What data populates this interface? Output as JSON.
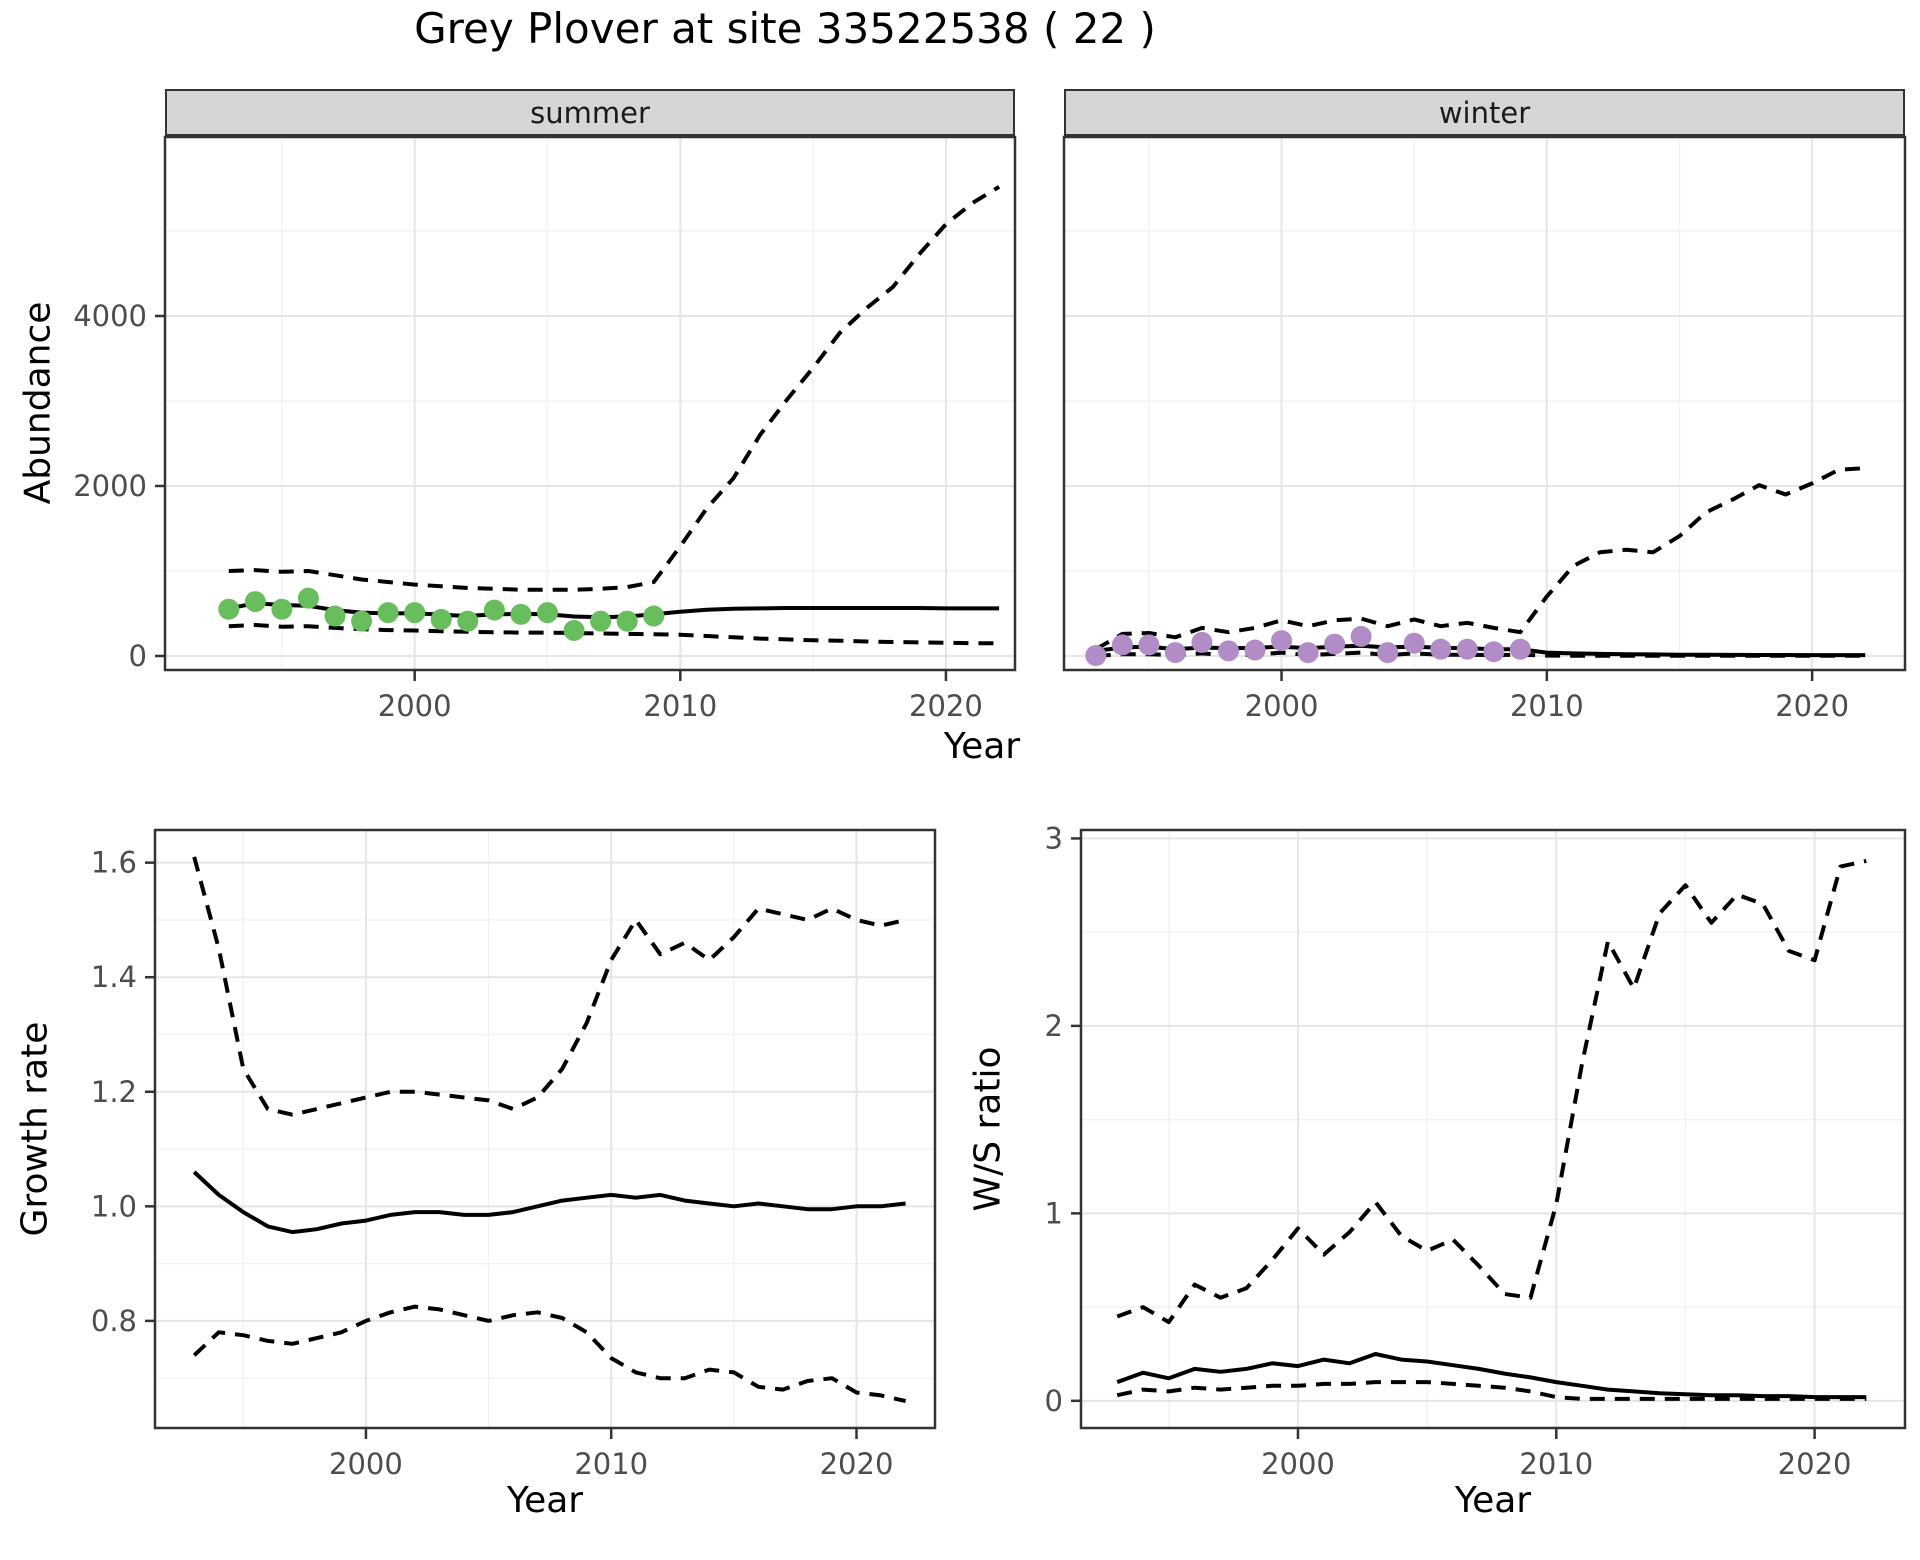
{
  "title": "Grey Plover at site 33522538 ( 22 )",
  "colors": {
    "summer_points": "#68BE5C",
    "winter_points": "#B18CC6",
    "line": "#000000",
    "strip_bg": "#D6D6D6",
    "grid_major": "#E5E5E5",
    "grid_minor": "#F2F2F2",
    "axis_text": "#4D4D4D",
    "panel_border": "#333333"
  },
  "chart_data": [
    {
      "id": "abundance_summer",
      "type": "line",
      "facet_label": "summer",
      "xlabel": "Year",
      "ylabel": "Abundance",
      "xlim": [
        1990.6,
        2022.6
      ],
      "ylim": [
        -165,
        6106
      ],
      "x_ticks": [
        2000,
        2010,
        2020
      ],
      "x_tick_labels": [
        "2000",
        "2010",
        "2020"
      ],
      "y_ticks": [
        0,
        2000,
        4000
      ],
      "y_tick_labels": [
        "0",
        "2000",
        "4000"
      ],
      "grid": true,
      "years": [
        1993,
        1994,
        1995,
        1996,
        1997,
        1998,
        1999,
        2000,
        2001,
        2002,
        2003,
        2004,
        2005,
        2006,
        2007,
        2008,
        2009,
        2010,
        2011,
        2012,
        2013,
        2014,
        2015,
        2016,
        2017,
        2018,
        2019,
        2020,
        2021,
        2022
      ],
      "series": [
        {
          "name": "upper_ci",
          "style": "dashed",
          "values": [
            1000,
            1010,
            990,
            1000,
            950,
            900,
            870,
            840,
            820,
            800,
            790,
            780,
            780,
            780,
            790,
            810,
            870,
            1290,
            1740,
            2090,
            2600,
            3010,
            3390,
            3800,
            4090,
            4340,
            4730,
            5080,
            5330,
            5520
          ]
        },
        {
          "name": "estimate",
          "style": "solid",
          "values": [
            560,
            620,
            600,
            590,
            540,
            510,
            500,
            505,
            485,
            470,
            490,
            495,
            490,
            465,
            455,
            465,
            490,
            520,
            545,
            555,
            560,
            565,
            565,
            565,
            565,
            565,
            565,
            560,
            560,
            560
          ]
        },
        {
          "name": "lower_ci",
          "style": "dashed",
          "values": [
            350,
            365,
            345,
            350,
            330,
            315,
            305,
            300,
            290,
            285,
            280,
            275,
            275,
            270,
            265,
            260,
            255,
            250,
            235,
            220,
            205,
            195,
            185,
            180,
            170,
            165,
            160,
            155,
            150,
            150
          ]
        },
        {
          "name": "observed_counts",
          "style": "points",
          "color": "#68BE5C",
          "years": [
            1993,
            1994,
            1995,
            1996,
            1997,
            1998,
            1999,
            2000,
            2001,
            2002,
            2003,
            2004,
            2005,
            2006,
            2007,
            2008,
            2009
          ],
          "values": [
            550,
            640,
            550,
            680,
            470,
            410,
            510,
            510,
            430,
            410,
            540,
            490,
            510,
            300,
            410,
            410,
            470
          ]
        }
      ]
    },
    {
      "id": "abundance_winter",
      "type": "line",
      "facet_label": "winter",
      "xlabel": "Year",
      "ylabel": "Abundance",
      "xlim": [
        1991.8,
        2023.5
      ],
      "ylim": [
        -165,
        6106
      ],
      "x_ticks": [
        2000,
        2010,
        2020
      ],
      "x_tick_labels": [
        "2000",
        "2010",
        "2020"
      ],
      "y_ticks": [
        0,
        2000,
        4000
      ],
      "y_tick_labels": [
        "0",
        "2000",
        "4000"
      ],
      "grid": true,
      "years": [
        1993,
        1994,
        1995,
        1996,
        1997,
        1998,
        1999,
        2000,
        2001,
        2002,
        2003,
        2004,
        2005,
        2006,
        2007,
        2008,
        2009,
        2010,
        2011,
        2012,
        2013,
        2014,
        2015,
        2016,
        2017,
        2018,
        2019,
        2020,
        2021,
        2022
      ],
      "series": [
        {
          "name": "upper_ci",
          "style": "dashed",
          "values": [
            80,
            260,
            270,
            220,
            330,
            280,
            330,
            420,
            350,
            420,
            440,
            350,
            430,
            350,
            390,
            330,
            280,
            700,
            1060,
            1220,
            1250,
            1220,
            1410,
            1690,
            1840,
            2010,
            1900,
            2030,
            2190,
            2210
          ]
        },
        {
          "name": "estimate",
          "style": "solid",
          "values": [
            60,
            100,
            110,
            80,
            100,
            90,
            95,
            110,
            90,
            110,
            120,
            100,
            110,
            95,
            90,
            80,
            80,
            40,
            30,
            25,
            20,
            18,
            15,
            14,
            13,
            12,
            11,
            10,
            10,
            10
          ]
        },
        {
          "name": "lower_ci",
          "style": "dashed",
          "values": [
            0,
            20,
            20,
            10,
            30,
            10,
            15,
            40,
            10,
            25,
            40,
            10,
            30,
            15,
            15,
            10,
            15,
            5,
            3,
            2,
            2,
            2,
            2,
            2,
            2,
            2,
            2,
            2,
            2,
            2
          ]
        },
        {
          "name": "observed_counts",
          "style": "points",
          "color": "#B18CC6",
          "years": [
            1993,
            1994,
            1995,
            1996,
            1997,
            1998,
            1999,
            2000,
            2001,
            2002,
            2003,
            2004,
            2005,
            2006,
            2007,
            2008,
            2009
          ],
          "values": [
            5,
            130,
            130,
            40,
            160,
            60,
            70,
            180,
            40,
            140,
            230,
            40,
            150,
            80,
            80,
            50,
            80
          ]
        }
      ]
    },
    {
      "id": "growth_rate",
      "type": "line",
      "facet_label": "",
      "xlabel": "Year",
      "ylabel": "Growth rate",
      "xlim": [
        1991.4,
        2023.2
      ],
      "ylim": [
        0.613,
        1.657
      ],
      "x_ticks": [
        2000,
        2010,
        2020
      ],
      "x_tick_labels": [
        "2000",
        "2010",
        "2020"
      ],
      "y_ticks": [
        0.8,
        1.0,
        1.2,
        1.4,
        1.6
      ],
      "y_tick_labels": [
        "0.8",
        "1.0",
        "1.2",
        "1.4",
        "1.6"
      ],
      "grid": true,
      "years": [
        1993,
        1994,
        1995,
        1996,
        1997,
        1998,
        1999,
        2000,
        2001,
        2002,
        2003,
        2004,
        2005,
        2006,
        2007,
        2008,
        2009,
        2010,
        2011,
        2012,
        2013,
        2014,
        2015,
        2016,
        2017,
        2018,
        2019,
        2020,
        2021,
        2022
      ],
      "series": [
        {
          "name": "upper_ci",
          "style": "dashed",
          "values": [
            1.61,
            1.45,
            1.24,
            1.17,
            1.16,
            1.17,
            1.18,
            1.19,
            1.2,
            1.2,
            1.195,
            1.19,
            1.185,
            1.17,
            1.19,
            1.24,
            1.32,
            1.43,
            1.5,
            1.44,
            1.46,
            1.43,
            1.47,
            1.52,
            1.51,
            1.5,
            1.52,
            1.5,
            1.49,
            1.5
          ]
        },
        {
          "name": "estimate",
          "style": "solid",
          "values": [
            1.06,
            1.02,
            0.99,
            0.965,
            0.955,
            0.96,
            0.97,
            0.975,
            0.985,
            0.99,
            0.99,
            0.985,
            0.985,
            0.99,
            1.0,
            1.01,
            1.015,
            1.02,
            1.015,
            1.02,
            1.01,
            1.005,
            1.0,
            1.005,
            1.0,
            0.995,
            0.995,
            1.0,
            1.0,
            1.005
          ]
        },
        {
          "name": "lower_ci",
          "style": "dashed",
          "values": [
            0.74,
            0.78,
            0.775,
            0.765,
            0.76,
            0.77,
            0.78,
            0.8,
            0.815,
            0.825,
            0.82,
            0.81,
            0.8,
            0.81,
            0.815,
            0.805,
            0.78,
            0.735,
            0.71,
            0.7,
            0.7,
            0.715,
            0.71,
            0.685,
            0.68,
            0.695,
            0.7,
            0.675,
            0.67,
            0.66
          ]
        }
      ]
    },
    {
      "id": "ws_ratio",
      "type": "line",
      "facet_label": "",
      "xlabel": "Year",
      "ylabel": "W/S ratio",
      "xlim": [
        1991.6,
        2023.5
      ],
      "ylim": [
        -0.145,
        3.045
      ],
      "x_ticks": [
        2000,
        2010,
        2020
      ],
      "x_tick_labels": [
        "2000",
        "2010",
        "2020"
      ],
      "y_ticks": [
        0,
        1,
        2,
        3
      ],
      "y_tick_labels": [
        "0",
        "1",
        "2",
        "3"
      ],
      "grid": true,
      "years": [
        1993,
        1994,
        1995,
        1996,
        1997,
        1998,
        1999,
        2000,
        2001,
        2002,
        2003,
        2004,
        2005,
        2006,
        2007,
        2008,
        2009,
        2010,
        2011,
        2012,
        2013,
        2014,
        2015,
        2016,
        2017,
        2018,
        2019,
        2020,
        2021,
        2022
      ],
      "series": [
        {
          "name": "upper_ci",
          "style": "dashed",
          "values": [
            0.45,
            0.5,
            0.42,
            0.62,
            0.55,
            0.6,
            0.75,
            0.92,
            0.78,
            0.9,
            1.06,
            0.88,
            0.8,
            0.86,
            0.72,
            0.57,
            0.55,
            1.05,
            1.8,
            2.45,
            2.2,
            2.6,
            2.75,
            2.55,
            2.7,
            2.65,
            2.4,
            2.35,
            2.85,
            2.88
          ]
        },
        {
          "name": "estimate",
          "style": "solid",
          "values": [
            0.1,
            0.15,
            0.12,
            0.17,
            0.155,
            0.17,
            0.2,
            0.185,
            0.22,
            0.2,
            0.25,
            0.22,
            0.21,
            0.19,
            0.17,
            0.145,
            0.125,
            0.1,
            0.08,
            0.06,
            0.05,
            0.04,
            0.035,
            0.03,
            0.03,
            0.025,
            0.025,
            0.02,
            0.02,
            0.02
          ]
        },
        {
          "name": "lower_ci",
          "style": "dashed",
          "values": [
            0.03,
            0.06,
            0.05,
            0.07,
            0.06,
            0.07,
            0.08,
            0.08,
            0.09,
            0.09,
            0.1,
            0.1,
            0.1,
            0.09,
            0.08,
            0.07,
            0.05,
            0.02,
            0.01,
            0.01,
            0.01,
            0.01,
            0.01,
            0.01,
            0.01,
            0.01,
            0.01,
            0.01,
            0.01,
            0.01
          ]
        }
      ]
    }
  ]
}
